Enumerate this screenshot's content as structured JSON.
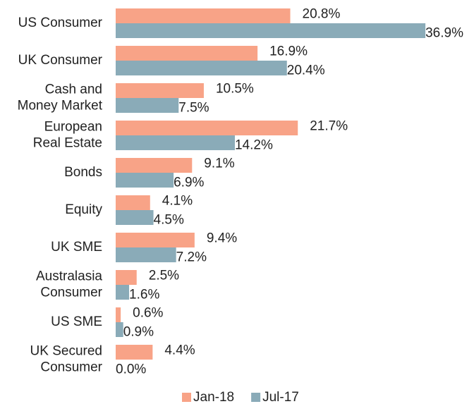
{
  "chart_data": {
    "type": "hbar",
    "categories": [
      "US Consumer",
      "UK Consumer",
      "Cash and\nMoney Market",
      "European\nReal Estate",
      "Bonds",
      "Equity",
      "UK SME",
      "Australasia\nConsumer",
      "US SME",
      "UK Secured\nConsumer"
    ],
    "series": [
      {
        "name": "Jan-18",
        "color": "#f8a387",
        "values": [
          20.8,
          16.9,
          10.5,
          21.7,
          9.1,
          4.1,
          9.4,
          2.5,
          0.6,
          4.4
        ],
        "value_labels": [
          "20.8%",
          "16.9%",
          "10.5%",
          "21.7%",
          "9.1%",
          "4.1%",
          "9.4%",
          "2.5%",
          "0.6%",
          "4.4%"
        ]
      },
      {
        "name": "Jul-17",
        "color": "#8aabb8",
        "values": [
          36.9,
          20.4,
          7.5,
          14.2,
          6.9,
          4.5,
          7.2,
          1.6,
          0.9,
          0.0
        ],
        "value_labels": [
          "36.9%",
          "20.4%",
          "7.5%",
          "14.2%",
          "6.9%",
          "4.5%",
          "7.2%",
          "1.6%",
          "0.9%",
          "0.0%"
        ]
      }
    ],
    "legend": "bottom"
  }
}
